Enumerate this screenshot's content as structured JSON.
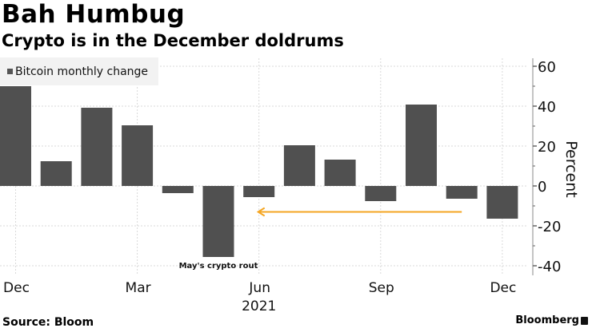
{
  "header": {
    "title": "Bah Humbug",
    "subtitle": "Crypto is in the December doldrums"
  },
  "footer": {
    "source": "Source: Bloom",
    "brand": "Bloomberg",
    "brand_icon": "bloomberg-terminal-icon"
  },
  "colors": {
    "bar": "#505050",
    "arrow": "#f5a623",
    "grid": "#d9d9d9"
  },
  "chart_data": {
    "type": "bar",
    "title": "Bah Humbug",
    "subtitle": "Crypto is in the December doldrums",
    "legend": [
      "Bitcoin monthly change"
    ],
    "legend_placement": "top-left",
    "ylabel": "Percent",
    "xlabel": "",
    "ylim": [
      -40,
      60
    ],
    "yticks": [
      60,
      40,
      20,
      0,
      -20,
      -40
    ],
    "ytick_labels": [
      "60",
      "40",
      "20",
      "0",
      "-20",
      "-40"
    ],
    "y_axis_side": "right",
    "grid": true,
    "categories": [
      "Dec 2020",
      "Jan 2021",
      "Feb 2021",
      "Mar 2021",
      "Apr 2021",
      "May 2021",
      "Jun 2021",
      "Jul 2021",
      "Aug 2021",
      "Sep 2021",
      "Oct 2021",
      "Nov 2021",
      "Dec 2021"
    ],
    "series": [
      {
        "name": "Bitcoin monthly change",
        "values": [
          50,
          12.4,
          39.2,
          30.4,
          -3.6,
          -35.6,
          -5.6,
          20.4,
          13.2,
          -7.6,
          40.8,
          -6.4,
          -16.4
        ]
      }
    ],
    "xtick_labels": [
      {
        "label": "Dec",
        "index": 0
      },
      {
        "label": "Mar",
        "index": 3
      },
      {
        "label": "Jun",
        "index": 6
      },
      {
        "label": "Sep",
        "index": 9
      },
      {
        "label": "Dec",
        "index": 12
      }
    ],
    "year_label": {
      "label": "2021",
      "index": 6
    },
    "annotations": [
      {
        "text": "May's crypto rout",
        "index": 5
      },
      {
        "type": "arrow",
        "from_index": 11,
        "to_index": 6,
        "value": -13
      }
    ]
  }
}
